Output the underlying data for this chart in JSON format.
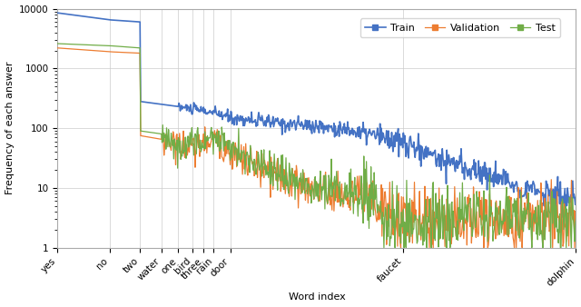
{
  "xlabel": "Word index",
  "ylabel": "Frequency of each answer",
  "xlim": [
    1,
    1000
  ],
  "ylim": [
    1,
    10000
  ],
  "legend_labels": [
    "Train",
    "Validation",
    "Test"
  ],
  "legend_colors": [
    "#4472C4",
    "#ED7D31",
    "#70AD47"
  ],
  "background_color": "#ffffff",
  "grid_color": "#cccccc",
  "xtick_positions": [
    1,
    2,
    3,
    4,
    5,
    6,
    7,
    8,
    10,
    100,
    1000
  ],
  "xtick_labels": [
    "yes",
    "no",
    "two",
    "water",
    "one",
    "bird",
    "three",
    "rain",
    "door",
    "faucet",
    "dolphin"
  ],
  "ytick_positions": [
    1,
    10,
    100,
    1000,
    10000
  ],
  "ytick_labels": [
    "1",
    "10",
    "100",
    "1000",
    "10000"
  ],
  "train_key_points_x": [
    1,
    2,
    3,
    3,
    4,
    5,
    6,
    7,
    8,
    9,
    10,
    15,
    20,
    30,
    40,
    50,
    70,
    100,
    150,
    200,
    300,
    400,
    500,
    700,
    1000
  ],
  "train_key_points_y": [
    8500,
    6500,
    6000,
    280,
    250,
    230,
    210,
    195,
    180,
    165,
    150,
    130,
    120,
    110,
    100,
    90,
    75,
    55,
    35,
    25,
    17,
    13,
    10,
    8,
    6
  ],
  "val_key_points_x": [
    1,
    2,
    3,
    3,
    4,
    5,
    6,
    7,
    8,
    9,
    10,
    15,
    20,
    25,
    30,
    40,
    50,
    60,
    70,
    80,
    90,
    100
  ],
  "val_key_points_y": [
    2200,
    1900,
    1800,
    75,
    65,
    55,
    45,
    55,
    70,
    50,
    40,
    20,
    14,
    12,
    10,
    8,
    7,
    6,
    5,
    4,
    3,
    3
  ],
  "test_key_points_x": [
    1,
    2,
    3,
    3,
    4,
    5,
    6,
    7,
    8,
    9,
    10,
    15,
    20,
    25,
    30,
    40,
    50,
    60,
    70,
    80,
    90,
    100
  ],
  "test_key_points_y": [
    2600,
    2400,
    2200,
    90,
    80,
    45,
    60,
    65,
    80,
    60,
    45,
    22,
    16,
    13,
    11,
    9,
    8,
    7,
    5,
    4,
    3,
    3
  ],
  "n_dense": 800,
  "train_noise_seed": 10,
  "val_noise_seed": 20,
  "test_noise_seed": 30
}
